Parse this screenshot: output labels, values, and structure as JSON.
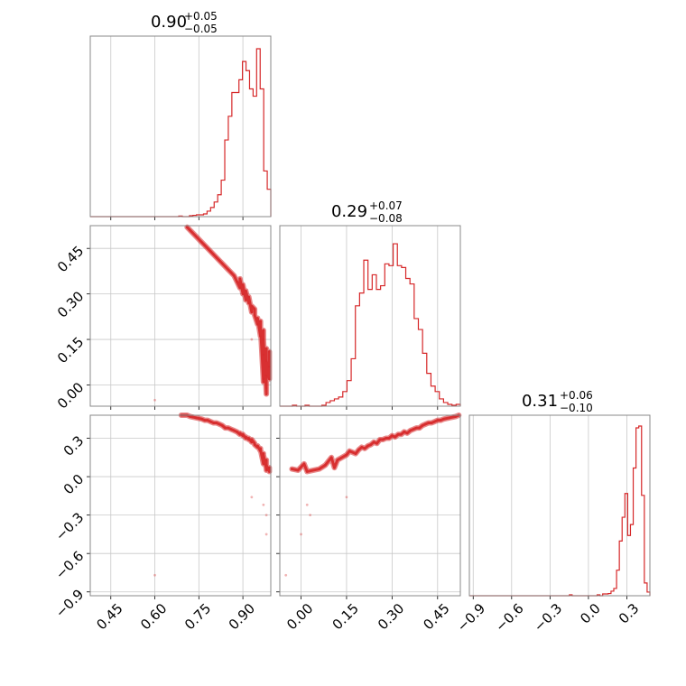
{
  "chart_data": {
    "type": "corner",
    "color": "#d62728",
    "grid": true,
    "parameters": [
      {
        "title": {
          "median": "0.90",
          "plus": "+0.05",
          "minus": "−0.05"
        },
        "range": [
          0.38,
          0.995
        ],
        "ticks": [
          {
            "value": 0.45,
            "label": "0.45"
          },
          {
            "value": 0.6,
            "label": "0.60"
          },
          {
            "value": 0.75,
            "label": "0.75"
          },
          {
            "value": 0.9,
            "label": "0.90"
          }
        ],
        "hist_edges": [
          0.38,
          0.995
        ],
        "hist": [
          0,
          0,
          0,
          0,
          0,
          0,
          0,
          0,
          0,
          0,
          0,
          0,
          0,
          0,
          0,
          0,
          0,
          0,
          0,
          0,
          0,
          0,
          0,
          0,
          0,
          0.003,
          0,
          0,
          0.005,
          0.007,
          0.01,
          0.01,
          0.015,
          0.03,
          0.05,
          0.08,
          0.12,
          0.2,
          0.42,
          0.55,
          0.68,
          0.68,
          0.75,
          0.85,
          0.8,
          0.7,
          0.66,
          0.92,
          0.7,
          0.25,
          0.15
        ]
      },
      {
        "title": {
          "median": "0.29",
          "plus": "+0.07",
          "minus": "−0.08"
        },
        "range": [
          -0.07,
          0.525
        ],
        "ticks": [
          {
            "value": 0.0,
            "label": "0.00"
          },
          {
            "value": 0.15,
            "label": "0.15"
          },
          {
            "value": 0.3,
            "label": "0.30"
          },
          {
            "value": 0.45,
            "label": "0.45"
          }
        ],
        "hist": [
          0,
          0,
          0,
          0.005,
          0,
          0,
          0.005,
          0,
          0,
          0,
          0.005,
          0.02,
          0.03,
          0.04,
          0.05,
          0.08,
          0.14,
          0.26,
          0.55,
          0.62,
          0.8,
          0.64,
          0.72,
          0.64,
          0.66,
          0.78,
          0.77,
          0.89,
          0.77,
          0.76,
          0.7,
          0.67,
          0.48,
          0.42,
          0.29,
          0.18,
          0.11,
          0.08,
          0.04,
          0.02,
          0.01,
          0.005,
          0.01
        ]
      },
      {
        "title": {
          "median": "0.31",
          "plus": "+0.06",
          "minus": "−0.10"
        },
        "range": [
          -0.93,
          0.48
        ],
        "ticks": [
          {
            "value": -0.9,
            "label": "−0.9"
          },
          {
            "value": -0.6,
            "label": "−0.6"
          },
          {
            "value": -0.3,
            "label": "−0.3"
          },
          {
            "value": 0.0,
            "label": "0.0"
          },
          {
            "value": 0.3,
            "label": "0.3"
          }
        ],
        "hist": [
          0,
          0,
          0,
          0,
          0,
          0,
          0,
          0,
          0,
          0,
          0,
          0,
          0,
          0,
          0,
          0,
          0,
          0,
          0,
          0,
          0,
          0,
          0,
          0,
          0,
          0,
          0,
          0,
          0,
          0,
          0,
          0,
          0,
          0,
          0,
          0,
          0.005,
          0,
          0,
          0,
          0,
          0,
          0,
          0,
          0,
          0,
          0.005,
          0,
          0.01,
          0.01,
          0.012,
          0.025,
          0.04,
          0.14,
          0.3,
          0.43,
          0.56,
          0.33,
          0.39,
          0.7,
          0.92,
          0.93,
          0.55,
          0.07,
          0.02
        ]
      }
    ],
    "scatter_points": [
      [
        0.98,
        -0.03,
        0.06
      ],
      [
        0.98,
        -0.01,
        0.05
      ],
      [
        0.99,
        0.02,
        0.04
      ],
      [
        0.97,
        0.01,
        0.1
      ],
      [
        0.99,
        0.06,
        0.06
      ],
      [
        0.97,
        0.1,
        0.15
      ],
      [
        0.98,
        0.12,
        0.13
      ],
      [
        0.99,
        0.11,
        0.07
      ],
      [
        0.96,
        0.16,
        0.2
      ],
      [
        0.97,
        0.18,
        0.18
      ],
      [
        0.95,
        0.2,
        0.23
      ],
      [
        0.96,
        0.21,
        0.22
      ],
      [
        0.95,
        0.22,
        0.24
      ],
      [
        0.93,
        0.24,
        0.27
      ],
      [
        0.94,
        0.25,
        0.26
      ],
      [
        0.92,
        0.27,
        0.29
      ],
      [
        0.93,
        0.26,
        0.29
      ],
      [
        0.91,
        0.28,
        0.3
      ],
      [
        0.92,
        0.29,
        0.3
      ],
      [
        0.9,
        0.3,
        0.32
      ],
      [
        0.91,
        0.31,
        0.31
      ],
      [
        0.89,
        0.32,
        0.33
      ],
      [
        0.9,
        0.33,
        0.33
      ],
      [
        0.88,
        0.34,
        0.35
      ],
      [
        0.89,
        0.35,
        0.34
      ],
      [
        0.87,
        0.36,
        0.36
      ],
      [
        0.86,
        0.37,
        0.37
      ],
      [
        0.85,
        0.38,
        0.38
      ],
      [
        0.84,
        0.39,
        0.38
      ],
      [
        0.83,
        0.4,
        0.4
      ],
      [
        0.82,
        0.41,
        0.41
      ],
      [
        0.81,
        0.42,
        0.42
      ],
      [
        0.79,
        0.44,
        0.43
      ],
      [
        0.78,
        0.45,
        0.44
      ],
      [
        0.76,
        0.47,
        0.45
      ],
      [
        0.74,
        0.49,
        0.46
      ],
      [
        0.72,
        0.51,
        0.47
      ],
      [
        0.71,
        0.52,
        0.48
      ],
      [
        0.69,
        0.53,
        0.48
      ],
      [
        0.77,
        0.46,
        0.44
      ],
      [
        0.8,
        0.43,
        0.42
      ],
      [
        0.94,
        0.23,
        0.25
      ],
      [
        0.96,
        0.19,
        0.21
      ],
      [
        0.97,
        0.15,
        0.17
      ],
      [
        0.98,
        0.08,
        0.09
      ],
      [
        0.6,
        -0.05,
        -0.77
      ],
      [
        0.98,
        0.03,
        -0.3
      ],
      [
        0.97,
        0.02,
        -0.22
      ],
      [
        0.93,
        0.15,
        -0.16
      ],
      [
        0.98,
        0.0,
        -0.45
      ]
    ]
  }
}
